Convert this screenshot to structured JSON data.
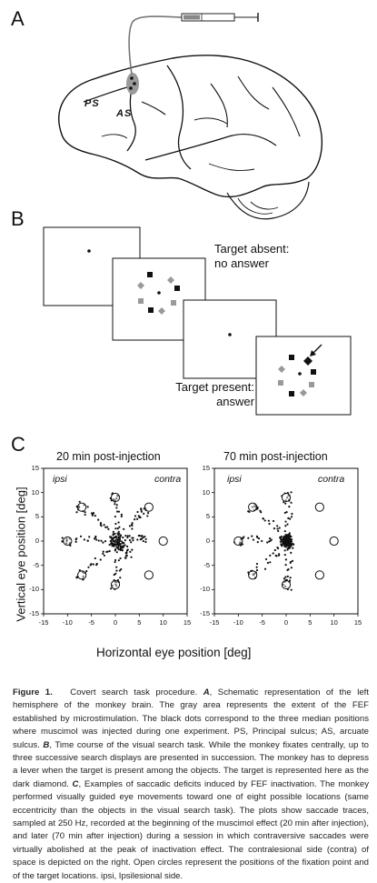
{
  "panels": {
    "a": {
      "letter": "A",
      "sulcus_ps": "PS",
      "sulcus_as": "AS"
    },
    "b": {
      "letter": "B",
      "absent_line1": "Target absent:",
      "absent_line2": "no answer",
      "present_line1": "Target present:",
      "present_line2": "answer"
    },
    "c": {
      "letter": "C",
      "left_title": "20 min post-injection",
      "right_title": "70 min post-injection",
      "ipsi": "ipsi",
      "contra": "contra",
      "ylabel": "Vertical eye position [deg]",
      "xlabel": "Horizontal eye position [deg]"
    }
  },
  "chart_data": [
    {
      "type": "scatter",
      "title": "20 min post-injection",
      "xlabel": "Horizontal eye position [deg]",
      "ylabel": "Vertical eye position [deg]",
      "xlim": [
        -15,
        15
      ],
      "ylim": [
        -15,
        15
      ],
      "xticks": [
        "-15",
        "-10",
        "-5",
        "0",
        "5",
        "10",
        "15"
      ],
      "yticks": [
        "15",
        "10",
        "5",
        "0",
        "-5",
        "-10",
        "-15"
      ],
      "targets": [
        [
          0,
          9
        ],
        [
          7,
          7
        ],
        [
          10,
          0
        ],
        [
          7,
          -7
        ],
        [
          0,
          -9
        ],
        [
          -7,
          -7
        ],
        [
          -10,
          0
        ],
        [
          -7,
          7
        ]
      ]
    },
    {
      "type": "scatter",
      "title": "70 min post-injection",
      "xlabel": "Horizontal eye position [deg]",
      "ylabel": "",
      "xlim": [
        -15,
        15
      ],
      "ylim": [
        -15,
        15
      ],
      "xticks": [
        "-15",
        "-10",
        "-5",
        "0",
        "5",
        "10",
        "15"
      ],
      "yticks": [
        "15",
        "10",
        "5",
        "0",
        "-5",
        "-10",
        "-15"
      ],
      "targets": [
        [
          0,
          9
        ],
        [
          7,
          7
        ],
        [
          10,
          0
        ],
        [
          7,
          -7
        ],
        [
          0,
          -9
        ],
        [
          -7,
          -7
        ],
        [
          -10,
          0
        ],
        [
          -7,
          7
        ]
      ]
    }
  ],
  "caption": {
    "fig_label": "Figure 1.",
    "text_1": "Covert search task procedure. ",
    "a_letter": "A",
    "text_2": ", Schematic representation of the left hemisphere of the monkey brain. The gray area represents the extent of the FEF established by microstimulation. The black dots correspond to the three median positions where muscimol was injected during one experiment. PS, Principal sulcus; AS, arcuate sulcus. ",
    "b_letter": "B",
    "text_3": ", Time course of the visual search task. While the monkey fixates centrally, up to three successive search displays are presented in succession. The monkey has to depress a lever when the target is present among the objects. The target is represented here as the dark diamond. ",
    "c_letter": "C",
    "text_4": ", Examples of saccadic deficits induced by FEF inactivation. The monkey performed visually guided eye movements toward one of eight possible locations (same eccentricity than the objects in the visual search task). The plots show saccade traces, sampled at 250 Hz, recorded at the beginning of the muscimol effect (20 min after injection), and later (70 min after injection) during a session in which contraversive saccades were virtually abolished at the peak of inactivation effect. The contralesional side (contra) of space is depicted on the right. Open circles represent the positions of the fixation point and of the target locations. ipsi, Ipsilesional side."
  }
}
